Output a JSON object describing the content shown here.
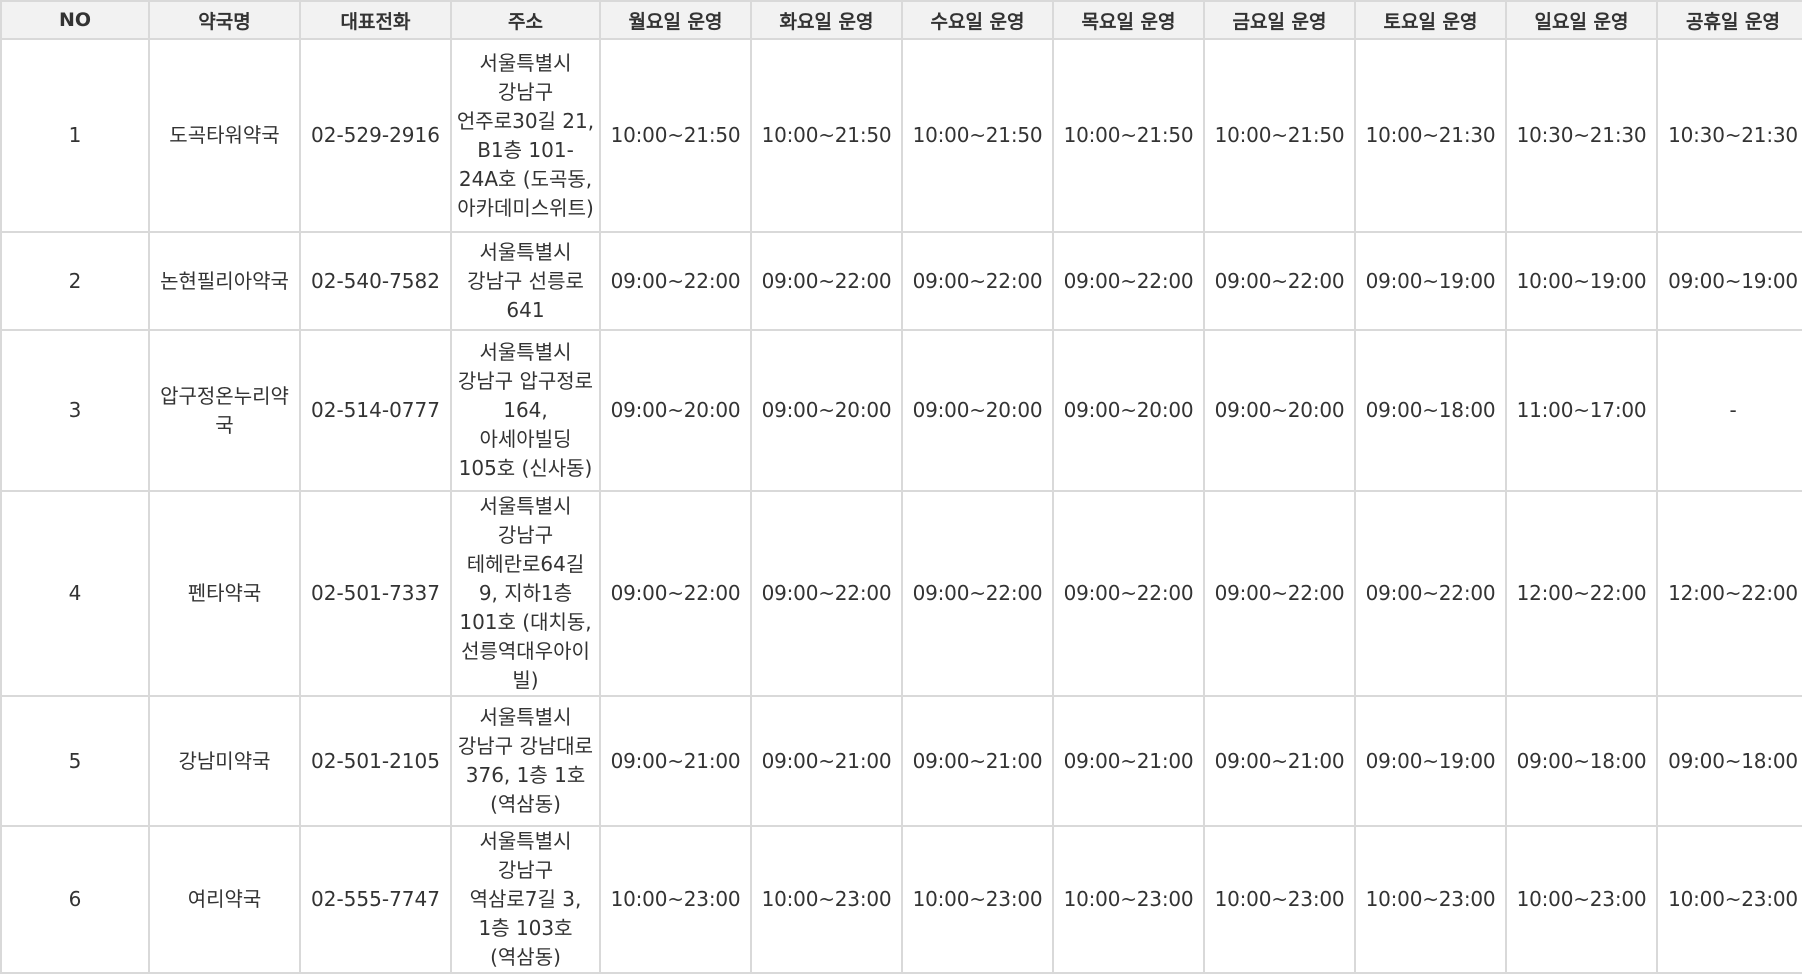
{
  "columns": [
    "NO",
    "약국명",
    "대표전화",
    "주소",
    "월요일 운영",
    "화요일 운영",
    "수요일 운영",
    "목요일 운영",
    "금요일 운영",
    "토요일 운영",
    "일요일 운영",
    "공휴일 운영"
  ],
  "rows": [
    {
      "no": "1",
      "name": "도곡타워약국",
      "phone": "02-529-2916",
      "address": "서울특별시 강남구 언주로30길 21, B1층 101-24A호 (도곡동, 아카데미스위트)",
      "mon": "10:00~21:50",
      "tue": "10:00~21:50",
      "wed": "10:00~21:50",
      "thu": "10:00~21:50",
      "fri": "10:00~21:50",
      "sat": "10:00~21:30",
      "sun": "10:30~21:30",
      "hol": "10:30~21:30"
    },
    {
      "no": "2",
      "name": "논현필리아약국",
      "phone": "02-540-7582",
      "address": "서울특별시 강남구 선릉로 641",
      "mon": "09:00~22:00",
      "tue": "09:00~22:00",
      "wed": "09:00~22:00",
      "thu": "09:00~22:00",
      "fri": "09:00~22:00",
      "sat": "09:00~19:00",
      "sun": "10:00~19:00",
      "hol": "09:00~19:00"
    },
    {
      "no": "3",
      "name": "압구정온누리약국",
      "phone": "02-514-0777",
      "address": "서울특별시 강남구 압구정로 164, 아세아빌딩 105호 (신사동)",
      "mon": "09:00~20:00",
      "tue": "09:00~20:00",
      "wed": "09:00~20:00",
      "thu": "09:00~20:00",
      "fri": "09:00~20:00",
      "sat": "09:00~18:00",
      "sun": "11:00~17:00",
      "hol": "-"
    },
    {
      "no": "4",
      "name": "펜타약국",
      "phone": "02-501-7337",
      "address": "서울특별시 강남구 테헤란로64길 9, 지하1층 101호 (대치동, 선릉역대우아이빌)",
      "mon": "09:00~22:00",
      "tue": "09:00~22:00",
      "wed": "09:00~22:00",
      "thu": "09:00~22:00",
      "fri": "09:00~22:00",
      "sat": "09:00~22:00",
      "sun": "12:00~22:00",
      "hol": "12:00~22:00"
    },
    {
      "no": "5",
      "name": "강남미약국",
      "phone": "02-501-2105",
      "address": "서울특별시 강남구 강남대로 376, 1층 1호 (역삼동)",
      "mon": "09:00~21:00",
      "tue": "09:00~21:00",
      "wed": "09:00~21:00",
      "thu": "09:00~21:00",
      "fri": "09:00~21:00",
      "sat": "09:00~19:00",
      "sun": "09:00~18:00",
      "hol": "09:00~18:00"
    },
    {
      "no": "6",
      "name": "여리약국",
      "phone": "02-555-7747",
      "address": "서울특별시 강남구 역삼로7길 3, 1층 103호 (역삼동)",
      "mon": "10:00~23:00",
      "tue": "10:00~23:00",
      "wed": "10:00~23:00",
      "thu": "10:00~23:00",
      "fri": "10:00~23:00",
      "sat": "10:00~23:00",
      "sun": "10:00~23:00",
      "hol": "10:00~23:00"
    }
  ]
}
